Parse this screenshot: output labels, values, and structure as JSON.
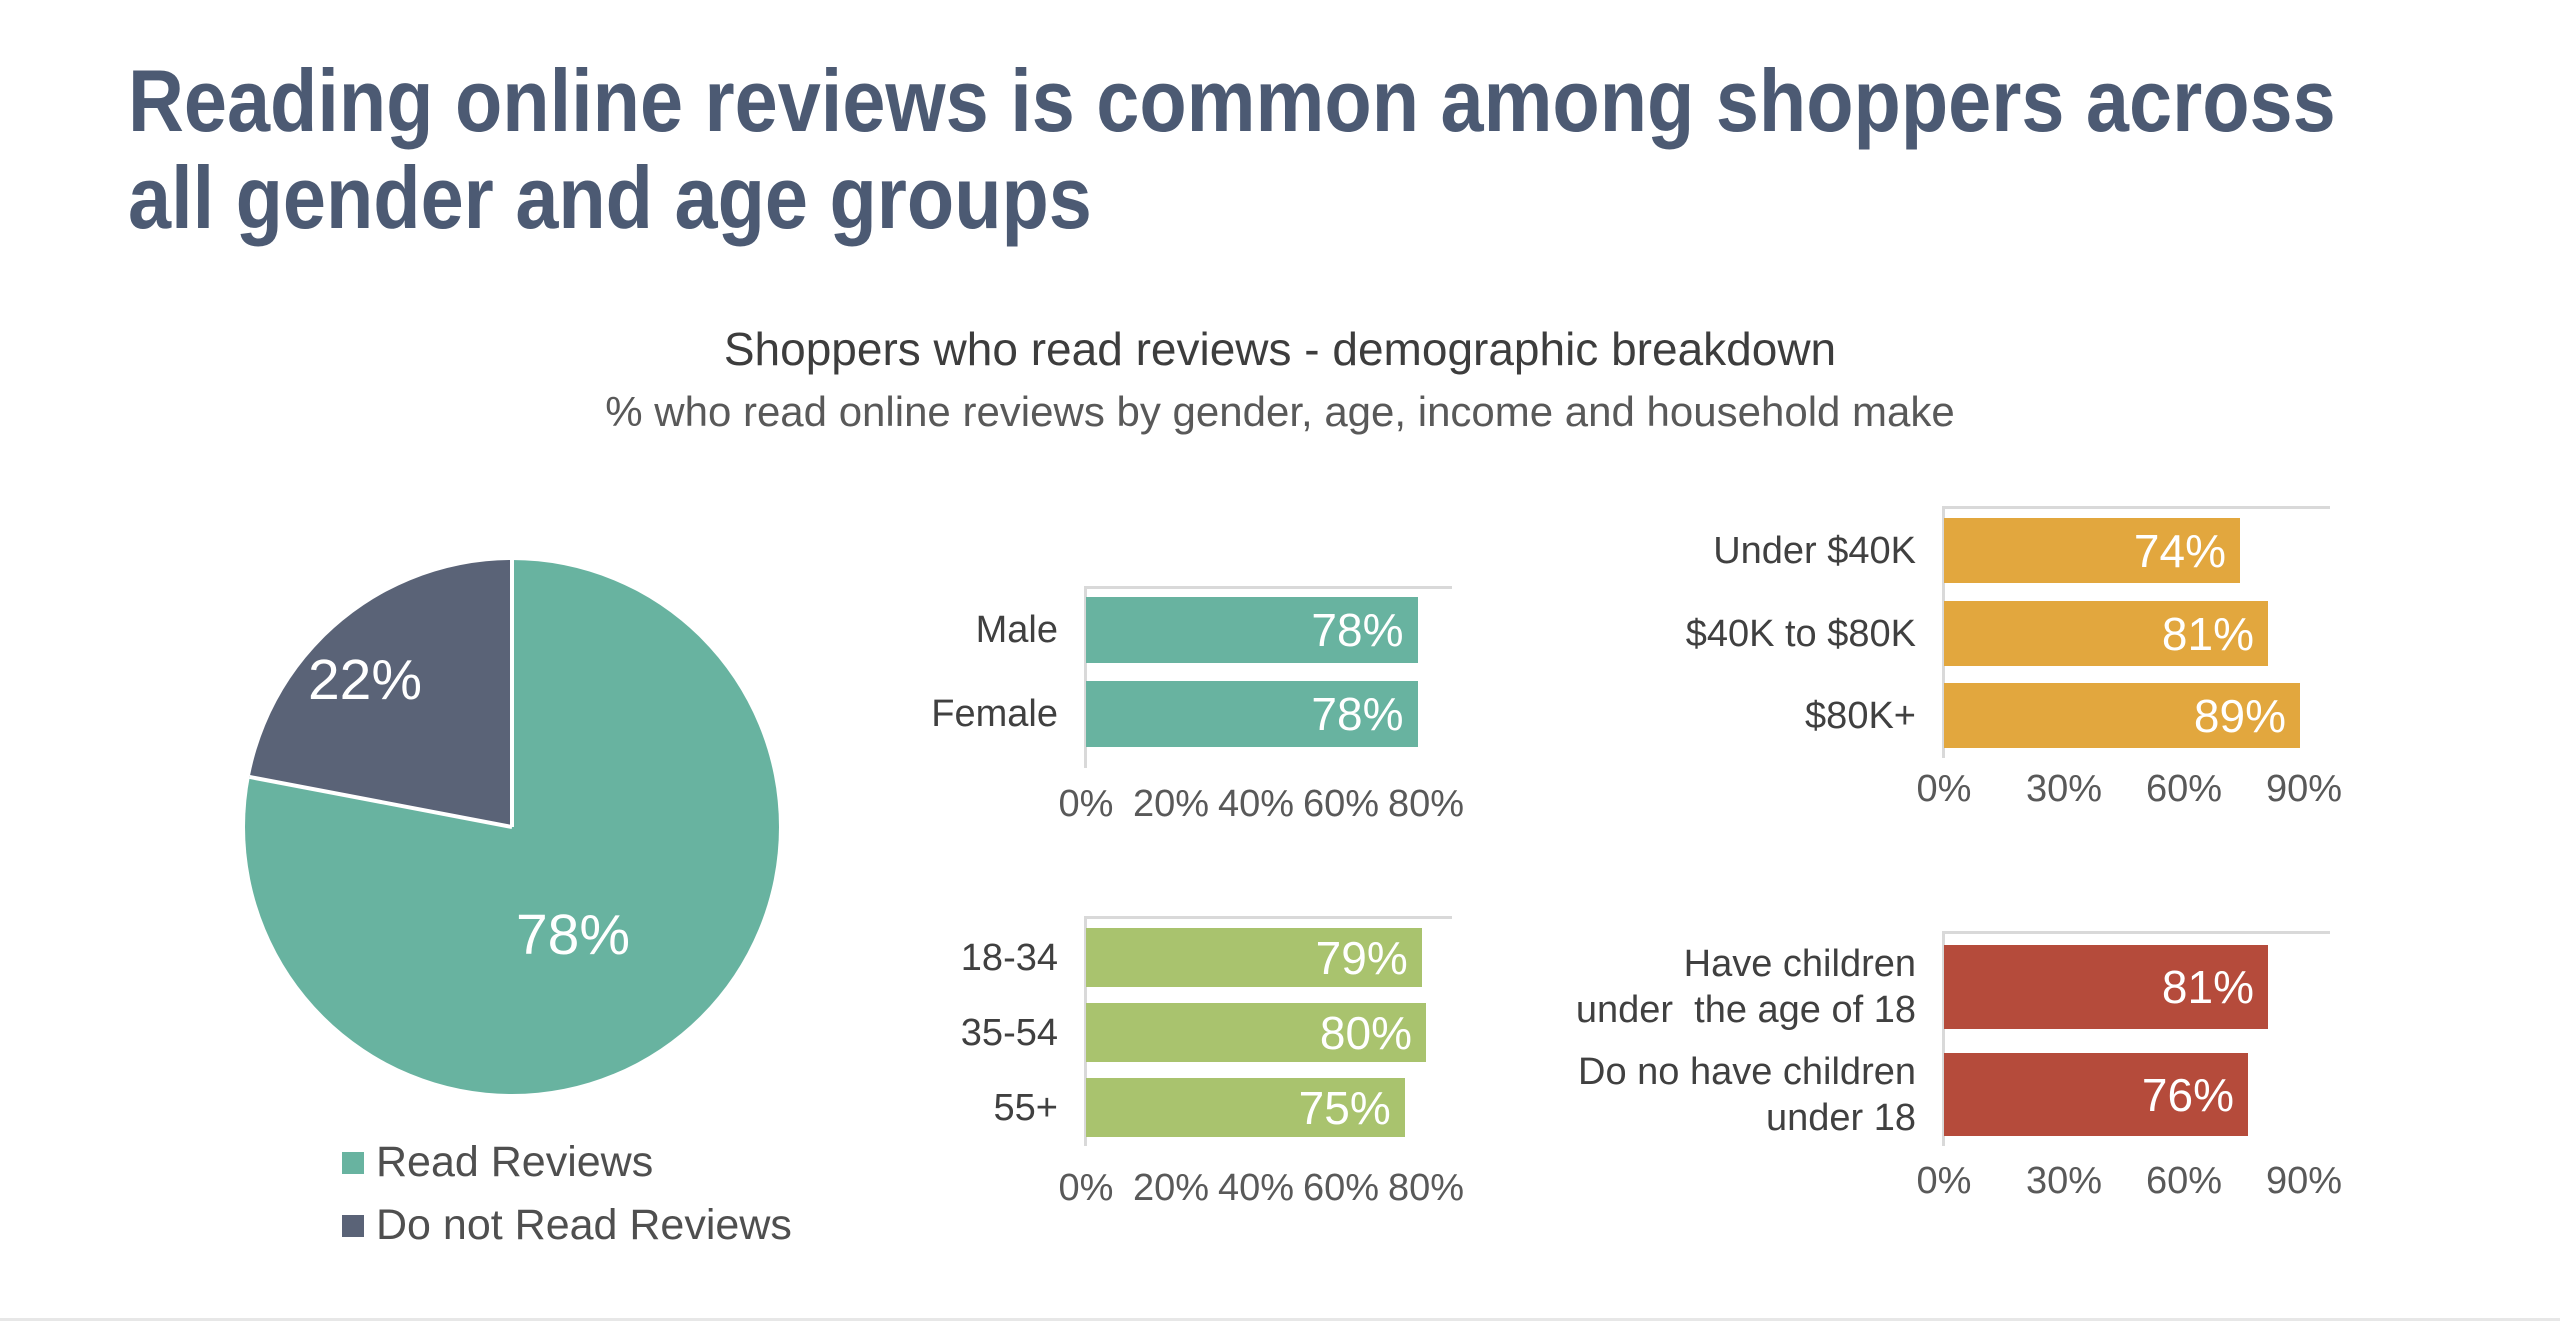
{
  "slide": {
    "title_lines": [
      "Reading online reviews is common among shoppers across",
      "all gender and age groups"
    ],
    "subtitle": "Shoppers who read reviews - demographic breakdown",
    "subsubtitle": "% who read online reviews by gender, age, income and household make",
    "colors": {
      "title": "#4C5A73",
      "subtitle_text": "#3d3d3d",
      "body_text": "#404040",
      "axis_text": "#595959",
      "axis_line": "#d9d9d9",
      "teal": "#68B3A0",
      "slate": "#5A6377",
      "olive": "#A9C36E",
      "amber": "#E2A73E",
      "brick": "#B54B3B"
    }
  },
  "legend": {
    "items": [
      {
        "label": "Read Reviews",
        "color": "#68B3A0"
      },
      {
        "label": "Do not Read Reviews",
        "color": "#5A6377"
      }
    ]
  },
  "chart_data": [
    {
      "id": "read-reviews-pie",
      "type": "pie",
      "categories": [
        "Read Reviews",
        "Do not Read Reviews"
      ],
      "values": [
        78,
        22
      ],
      "value_labels": [
        "78%",
        "22%"
      ],
      "slice_colors": [
        "#68B3A0",
        "#5A6377"
      ],
      "start_angle_deg": 0,
      "direction": "clockwise",
      "legend_position": "bottom-left"
    },
    {
      "id": "gender",
      "type": "bar",
      "orientation": "horizontal",
      "categories": [
        "Male",
        "Female"
      ],
      "values": [
        78,
        78
      ],
      "value_labels": [
        "78%",
        "78%"
      ],
      "color": "#68B3A0",
      "x_tick_labels": [
        "0%",
        "20%",
        "40%",
        "60%",
        "80%"
      ],
      "xlim": [
        0,
        80
      ],
      "grid": false,
      "value_label_position": "inside-end"
    },
    {
      "id": "age",
      "type": "bar",
      "orientation": "horizontal",
      "categories": [
        "18-34",
        "35-54",
        "55+"
      ],
      "values": [
        79,
        80,
        75
      ],
      "value_labels": [
        "79%",
        "80%",
        "75%"
      ],
      "color": "#A9C36E",
      "x_tick_labels": [
        "0%",
        "20%",
        "40%",
        "60%",
        "80%"
      ],
      "xlim": [
        0,
        80
      ],
      "grid": false,
      "value_label_position": "inside-end"
    },
    {
      "id": "income",
      "type": "bar",
      "orientation": "horizontal",
      "categories": [
        "Under $40K",
        "$40K to $80K",
        "$80K+"
      ],
      "values": [
        74,
        81,
        89
      ],
      "value_labels": [
        "74%",
        "81%",
        "89%"
      ],
      "color": "#E2A73E",
      "x_tick_labels": [
        "0%",
        "30%",
        "60%",
        "90%"
      ],
      "xlim": [
        0,
        90
      ],
      "grid": false,
      "value_label_position": "inside-end"
    },
    {
      "id": "children",
      "type": "bar",
      "orientation": "horizontal",
      "categories": [
        "Have children\nunder  the age of 18",
        "Do no have children\nunder 18"
      ],
      "values": [
        81,
        76
      ],
      "value_labels": [
        "81%",
        "76%"
      ],
      "color": "#B54B3B",
      "x_tick_labels": [
        "0%",
        "30%",
        "60%",
        "90%"
      ],
      "xlim": [
        0,
        90
      ],
      "grid": false,
      "value_label_position": "inside-end"
    }
  ]
}
